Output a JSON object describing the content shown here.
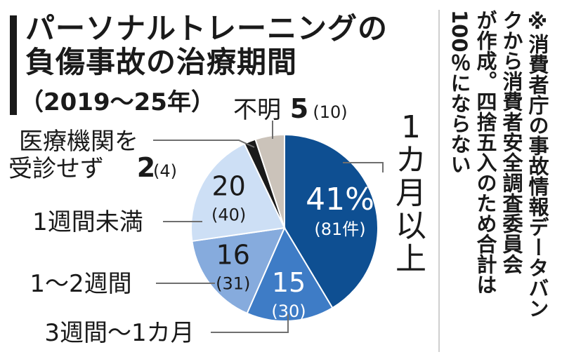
{
  "title": {
    "line1": "パーソナルトレーニングの",
    "line2": "負傷事故の治療期間"
  },
  "period": "（2019～25年）",
  "note_lines": [
    "※消費者庁の事故情報データバン",
    "クから消費者安全調査委員会",
    "が作成。四捨五入のため合計は",
    "100％にならない"
  ],
  "colors": {
    "title_bar": "#1a1a1a",
    "divider": "#cfcfcf"
  },
  "chart_data": {
    "type": "pie",
    "slices": [
      {
        "label": "1カ月以上",
        "percent": 41,
        "count": 81,
        "value_text": "41%",
        "count_text": "(81件)",
        "color": "#0e4f92",
        "text_color": "#ffffff"
      },
      {
        "label": "3週間～1カ月",
        "percent": 15,
        "count": 30,
        "value_text": "15",
        "count_text": "(30)",
        "color": "#3e7cc6",
        "text_color": "#ffffff"
      },
      {
        "label": "1～2週間",
        "percent": 16,
        "count": 31,
        "value_text": "16",
        "count_text": "(31)",
        "color": "#86abdd",
        "text_color": "#1a1a1a"
      },
      {
        "label": "1週間未満",
        "percent": 20,
        "count": 40,
        "value_text": "20",
        "count_text": "(40)",
        "color": "#cddff5",
        "text_color": "#1a1a1a"
      },
      {
        "label_lines": [
          "医療機関を",
          "受診せず"
        ],
        "percent": 2,
        "count": 4,
        "value_text": "2",
        "count_text": "(4)",
        "color": "#1a1a1a"
      },
      {
        "label": "不明",
        "percent": 5,
        "count": 10,
        "value_text": "5",
        "count_text": "(10)",
        "color": "#cbc3ba"
      }
    ]
  }
}
